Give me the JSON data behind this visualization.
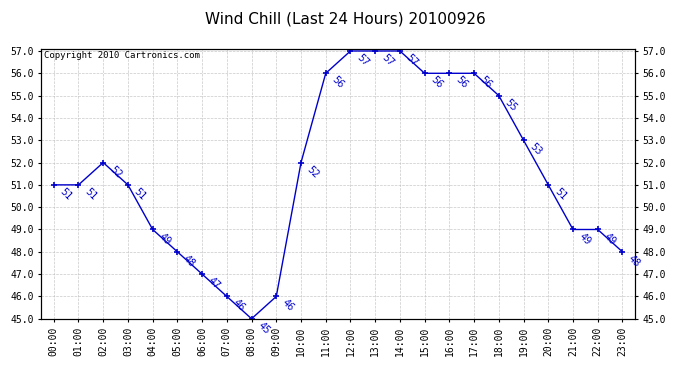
{
  "title": "Wind Chill (Last 24 Hours) 20100926",
  "copyright": "Copyright 2010 Cartronics.com",
  "hours": [
    "00:00",
    "01:00",
    "02:00",
    "03:00",
    "04:00",
    "05:00",
    "06:00",
    "07:00",
    "08:00",
    "09:00",
    "10:00",
    "11:00",
    "12:00",
    "13:00",
    "14:00",
    "15:00",
    "16:00",
    "17:00",
    "18:00",
    "19:00",
    "20:00",
    "21:00",
    "22:00",
    "23:00"
  ],
  "values": [
    51,
    51,
    52,
    51,
    49,
    48,
    47,
    46,
    45,
    46,
    52,
    56,
    57,
    57,
    57,
    56,
    56,
    56,
    55,
    53,
    51,
    49,
    49,
    48
  ],
  "ylim_min": 45.0,
  "ylim_max": 57.0,
  "ytick_step": 1.0,
  "line_color": "#0000cc",
  "marker": "+",
  "bg_color": "#ffffff",
  "grid_color": "#bbbbbb",
  "title_fontsize": 11,
  "label_fontsize": 7,
  "tick_fontsize": 7,
  "copyright_fontsize": 6.5
}
